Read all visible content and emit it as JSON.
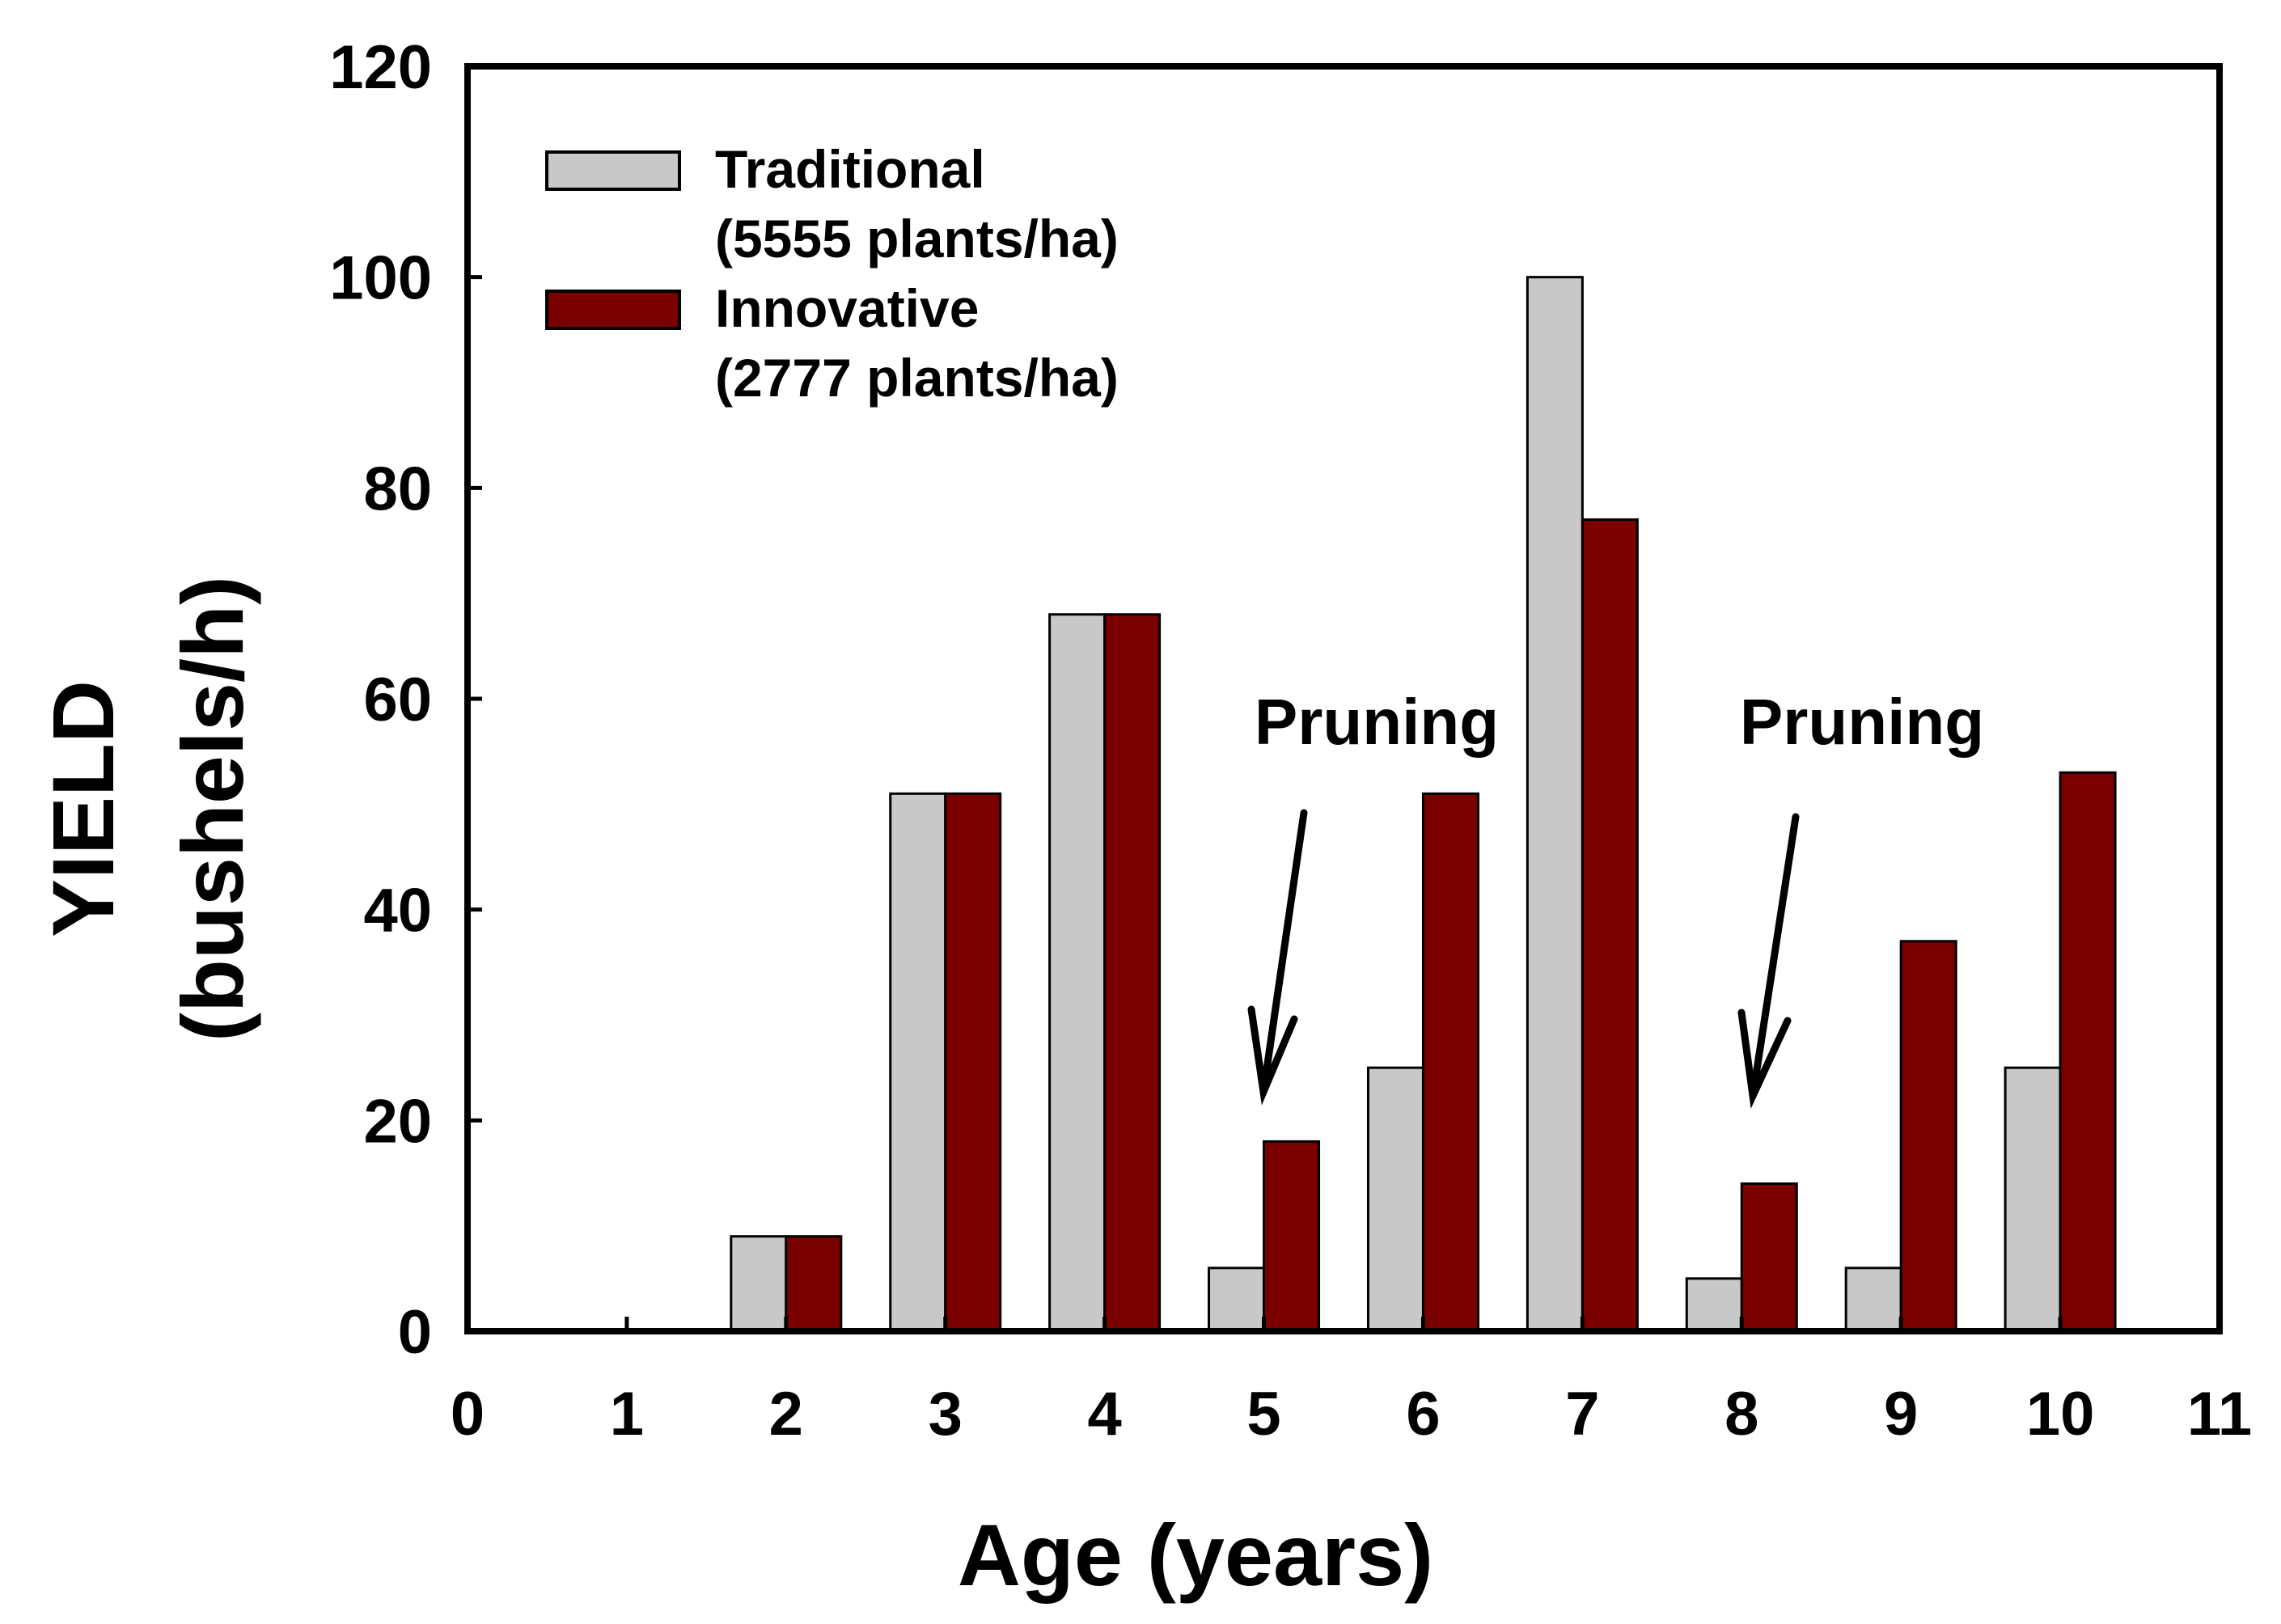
{
  "chart_data": {
    "type": "bar",
    "title": "",
    "xlabel": "Age (years)",
    "ylabel_line1": "YIELD",
    "ylabel_line2": "(bushels/h)",
    "xlim": [
      0,
      11
    ],
    "ylim": [
      0,
      120
    ],
    "x_ticks": [
      "0",
      "1",
      "2",
      "3",
      "4",
      "5",
      "6",
      "7",
      "8",
      "9",
      "10",
      "11"
    ],
    "y_ticks": [
      "0",
      "20",
      "40",
      "60",
      "80",
      "100",
      "120"
    ],
    "categories": [
      2,
      3,
      4,
      5,
      6,
      7,
      8,
      9,
      10
    ],
    "series": [
      {
        "name": "Traditional",
        "name_line2": "(5555 plants/ha)",
        "color": "#c8c8c8",
        "values": [
          9,
          51,
          68,
          6,
          25,
          100,
          5,
          6,
          25
        ]
      },
      {
        "name": "Innovative",
        "name_line2": "(2777 plants/ha)",
        "color": "#7a0000",
        "values": [
          9,
          51,
          68,
          18,
          51,
          77,
          14,
          37,
          53
        ]
      }
    ],
    "annotations": [
      {
        "text": "Pruning",
        "x": 5
      },
      {
        "text": "Pruning",
        "x": 8
      }
    ],
    "legend_position": "top-left",
    "grid": false
  }
}
